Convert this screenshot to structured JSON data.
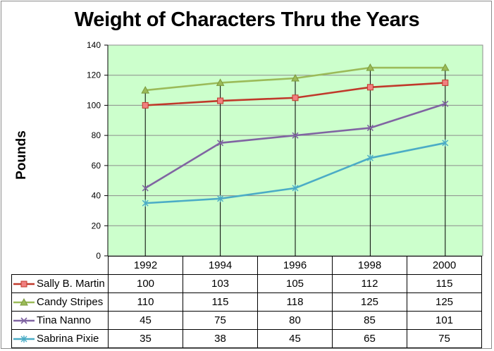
{
  "chart_data": {
    "type": "line",
    "title": "Weight of Characters Thru the Years",
    "ylabel": "Pounds",
    "xlabel": "",
    "categories": [
      "1992",
      "1994",
      "1996",
      "1998",
      "2000"
    ],
    "ylim": [
      0,
      140
    ],
    "yticks": [
      0,
      20,
      40,
      60,
      80,
      100,
      120,
      140
    ],
    "grid": true,
    "legend": "data-table",
    "plot_background": "#ccffcc",
    "series": [
      {
        "name": "Sally B. Martin",
        "values": [
          100,
          103,
          105,
          112,
          115
        ],
        "color": "#c0392b",
        "marker": "square"
      },
      {
        "name": "Candy Stripes",
        "values": [
          110,
          115,
          118,
          125,
          125
        ],
        "color": "#9bbb59",
        "marker": "triangle"
      },
      {
        "name": "Tina Nanno",
        "values": [
          45,
          75,
          80,
          85,
          101
        ],
        "color": "#8064a2",
        "marker": "x"
      },
      {
        "name": "Sabrina Pixie",
        "values": [
          35,
          38,
          45,
          65,
          75
        ],
        "color": "#4bacc6",
        "marker": "star"
      }
    ]
  }
}
